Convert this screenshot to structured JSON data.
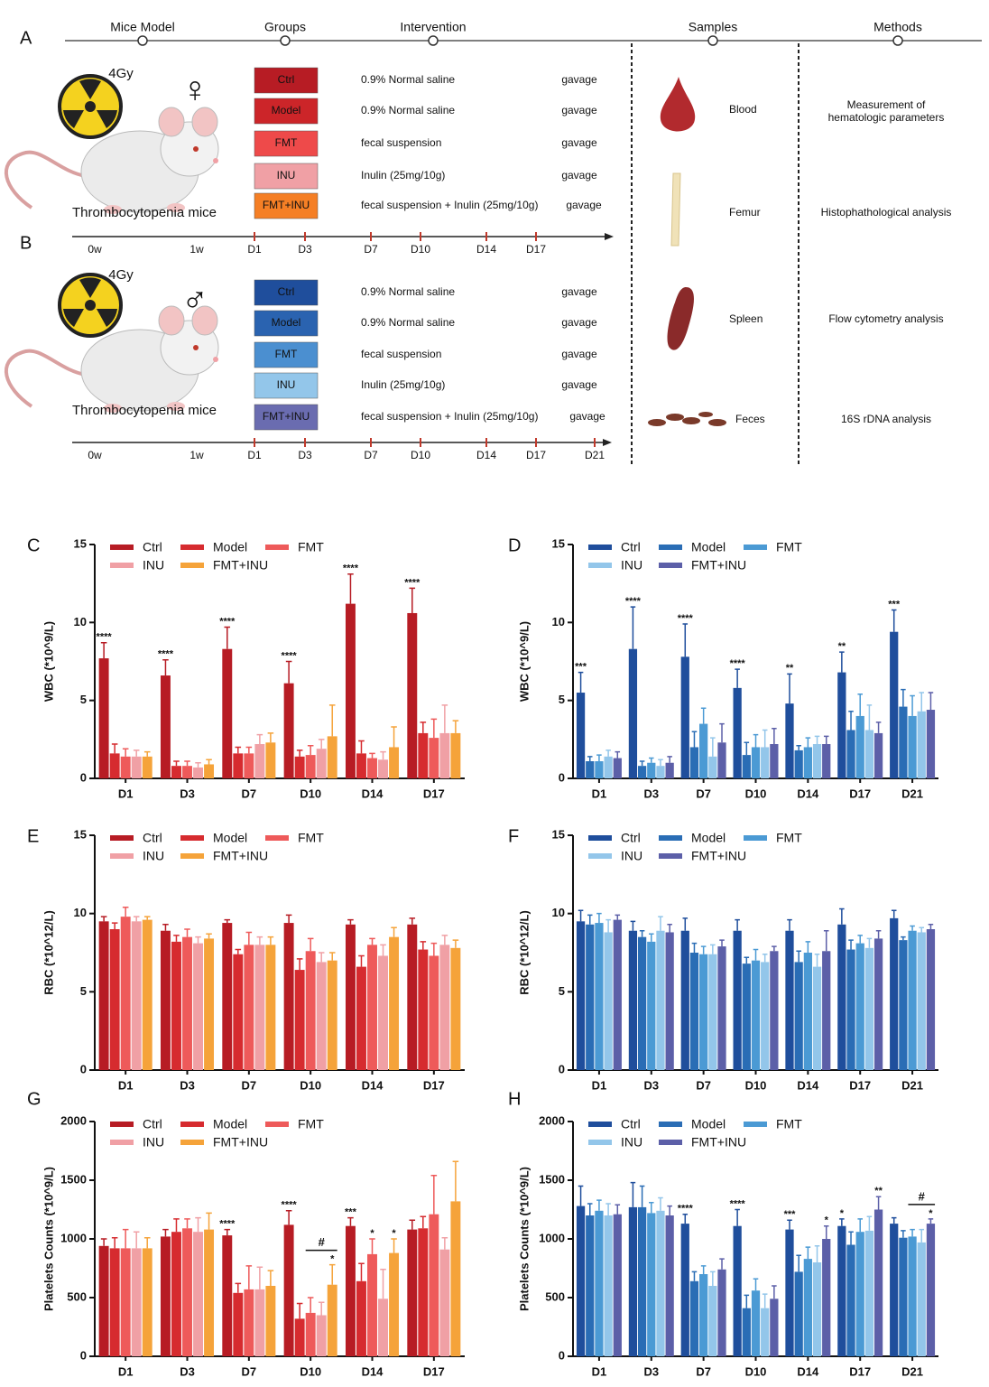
{
  "schematic": {
    "panel_a": "A",
    "panel_b": "B",
    "stages": [
      "Mice Model",
      "Groups",
      "Intervention",
      "Samples",
      "Methods"
    ],
    "cohorts": [
      {
        "dose": "4Gy",
        "sex": "♀",
        "model": "Thrombocytopenia mice",
        "groups": [
          {
            "label": "Ctrl",
            "intervention": "0.9% Normal saline",
            "route": "gavage",
            "color": "#b71c24"
          },
          {
            "label": "Model",
            "intervention": "0.9% Normal saline",
            "route": "gavage",
            "color": "#cc2529"
          },
          {
            "label": "FMT",
            "intervention": "fecal suspension",
            "route": "gavage",
            "color": "#ee4a4a"
          },
          {
            "label": "INU",
            "intervention": "Inulin (25mg/10g)",
            "route": "gavage",
            "color": "#f0a0a5"
          },
          {
            "label": "FMT+INU",
            "intervention": "fecal suspension + Inulin (25mg/10g)",
            "route": "gavage",
            "color": "#f57f25"
          }
        ],
        "timeline": [
          "0w",
          "1w",
          "D1",
          "D3",
          "D7",
          "D10",
          "D14",
          "D17"
        ]
      },
      {
        "dose": "4Gy",
        "sex": "♂",
        "model": "Thrombocytopenia mice",
        "groups": [
          {
            "label": "Ctrl",
            "intervention": "0.9% Normal saline",
            "route": "gavage",
            "color": "#1f4e9c"
          },
          {
            "label": "Model",
            "intervention": "0.9% Normal saline",
            "route": "gavage",
            "color": "#2a63b0"
          },
          {
            "label": "FMT",
            "intervention": "fecal suspension",
            "route": "gavage",
            "color": "#4b8fd0"
          },
          {
            "label": "INU",
            "intervention": "Inulin (25mg/10g)",
            "route": "gavage",
            "color": "#93c6ea"
          },
          {
            "label": "FMT+INU",
            "intervention": "fecal suspension + Inulin (25mg/10g)",
            "route": "gavage",
            "color": "#6a6cb0"
          }
        ],
        "timeline": [
          "0w",
          "1w",
          "D1",
          "D3",
          "D7",
          "D10",
          "D14",
          "D17",
          "D21"
        ]
      }
    ],
    "samples": [
      {
        "name": "Blood",
        "method": "Measurement of hematologic parameters"
      },
      {
        "name": "Femur",
        "method": "Histophathological analysis"
      },
      {
        "name": "Spleen",
        "method": "Flow cytometry analysis"
      },
      {
        "name": "Feces",
        "method": "16S rDNA analysis"
      }
    ]
  },
  "chart_data": [
    {
      "type": "bar",
      "panel": "C",
      "y_label": "WBC (*10^9/L)",
      "categories": [
        "D1",
        "D3",
        "D7",
        "D10",
        "D14",
        "D17"
      ],
      "ylim": [
        0,
        15
      ],
      "yticks": [
        0,
        5,
        10,
        15
      ],
      "series": [
        {
          "name": "Ctrl",
          "color": "#b71c24",
          "values": [
            7.7,
            6.6,
            8.3,
            6.1,
            11.2,
            10.6
          ],
          "errors": [
            1.0,
            1.0,
            1.4,
            1.4,
            1.9,
            1.6
          ],
          "annotations": [
            "****",
            "****",
            "****",
            "****",
            "****",
            "****"
          ]
        },
        {
          "name": "Model",
          "color": "#d62b2f",
          "values": [
            1.6,
            0.8,
            1.6,
            1.4,
            1.6,
            2.9
          ],
          "errors": [
            0.6,
            0.3,
            0.4,
            0.4,
            0.8,
            0.7
          ]
        },
        {
          "name": "FMT",
          "color": "#ee5a5a",
          "values": [
            1.4,
            0.8,
            1.6,
            1.5,
            1.3,
            2.6
          ],
          "errors": [
            0.5,
            0.3,
            0.4,
            0.6,
            0.3,
            1.2
          ]
        },
        {
          "name": "INU",
          "color": "#f0a0a5",
          "values": [
            1.4,
            0.7,
            2.2,
            1.9,
            1.2,
            2.9
          ],
          "errors": [
            0.4,
            0.3,
            0.6,
            0.6,
            0.5,
            1.8
          ]
        },
        {
          "name": "FMT+INU",
          "color": "#f5a33a",
          "values": [
            1.4,
            0.9,
            2.3,
            2.7,
            2.0,
            2.9
          ],
          "errors": [
            0.3,
            0.3,
            0.6,
            2.0,
            1.3,
            0.8
          ]
        }
      ]
    },
    {
      "type": "bar",
      "panel": "D",
      "y_label": "WBC (*10^9/L)",
      "categories": [
        "D1",
        "D3",
        "D7",
        "D10",
        "D14",
        "D17",
        "D21"
      ],
      "ylim": [
        0,
        15
      ],
      "yticks": [
        0,
        5,
        10,
        15
      ],
      "series": [
        {
          "name": "Ctrl",
          "color": "#1f4e9c",
          "values": [
            5.5,
            8.3,
            7.8,
            5.8,
            4.8,
            6.8,
            9.4
          ],
          "errors": [
            1.3,
            2.7,
            2.1,
            1.2,
            1.9,
            1.3,
            1.4
          ],
          "annotations": [
            "***",
            "****",
            "****",
            "****",
            "**",
            "**",
            "***"
          ]
        },
        {
          "name": "Model",
          "color": "#2a6db5",
          "values": [
            1.1,
            0.8,
            2.0,
            1.5,
            1.8,
            3.1,
            4.6
          ],
          "errors": [
            0.3,
            0.3,
            1.0,
            0.8,
            0.3,
            1.2,
            1.1
          ]
        },
        {
          "name": "FMT",
          "color": "#4b9ad4",
          "values": [
            1.1,
            1.0,
            3.5,
            2.0,
            2.0,
            4.0,
            4.0
          ],
          "errors": [
            0.4,
            0.3,
            1.0,
            0.8,
            0.6,
            1.4,
            1.3
          ]
        },
        {
          "name": "INU",
          "color": "#93c6ea",
          "values": [
            1.4,
            0.8,
            1.4,
            2.0,
            2.2,
            3.1,
            4.3
          ],
          "errors": [
            0.4,
            0.4,
            1.2,
            1.1,
            0.5,
            1.6,
            1.2
          ]
        },
        {
          "name": "FMT+INU",
          "color": "#5c5fa8",
          "values": [
            1.3,
            1.0,
            2.3,
            2.2,
            2.2,
            2.9,
            4.4
          ],
          "errors": [
            0.4,
            0.4,
            1.2,
            1.0,
            0.5,
            0.7,
            1.1
          ]
        }
      ]
    },
    {
      "type": "bar",
      "panel": "E",
      "y_label": "RBC (*10^12/L)",
      "categories": [
        "D1",
        "D3",
        "D7",
        "D10",
        "D14",
        "D17"
      ],
      "ylim": [
        0,
        15
      ],
      "yticks": [
        0,
        5,
        10,
        15
      ],
      "series": [
        {
          "name": "Ctrl",
          "color": "#b71c24",
          "values": [
            9.5,
            8.9,
            9.4,
            9.4,
            9.3,
            9.3
          ],
          "errors": [
            0.3,
            0.4,
            0.2,
            0.5,
            0.3,
            0.4
          ]
        },
        {
          "name": "Model",
          "color": "#d62b2f",
          "values": [
            9.0,
            8.2,
            7.4,
            6.4,
            6.6,
            7.7
          ],
          "errors": [
            0.4,
            0.4,
            0.3,
            0.7,
            0.7,
            0.5
          ]
        },
        {
          "name": "FMT",
          "color": "#ee5a5a",
          "values": [
            9.8,
            8.5,
            8.0,
            7.6,
            8.0,
            7.3
          ],
          "errors": [
            0.6,
            0.5,
            0.8,
            0.8,
            0.4,
            0.8
          ]
        },
        {
          "name": "INU",
          "color": "#f0a0a5",
          "values": [
            9.5,
            8.1,
            8.0,
            6.9,
            7.3,
            8.0
          ],
          "errors": [
            0.3,
            0.4,
            0.5,
            0.6,
            0.7,
            0.6
          ]
        },
        {
          "name": "FMT+INU",
          "color": "#f5a33a",
          "values": [
            9.6,
            8.4,
            8.0,
            7.0,
            8.5,
            7.8
          ],
          "errors": [
            0.2,
            0.3,
            0.5,
            0.5,
            0.6,
            0.5
          ]
        }
      ]
    },
    {
      "type": "bar",
      "panel": "F",
      "y_label": "RBC (*10^12/L)",
      "categories": [
        "D1",
        "D3",
        "D7",
        "D10",
        "D14",
        "D17",
        "D21"
      ],
      "ylim": [
        0,
        15
      ],
      "yticks": [
        0,
        5,
        10,
        15
      ],
      "series": [
        {
          "name": "Ctrl",
          "color": "#1f4e9c",
          "values": [
            9.5,
            8.9,
            8.9,
            8.9,
            8.9,
            9.3,
            9.7
          ],
          "errors": [
            0.7,
            0.6,
            0.8,
            0.7,
            0.7,
            1.0,
            0.5
          ]
        },
        {
          "name": "Model",
          "color": "#2a6db5",
          "values": [
            9.3,
            8.5,
            7.5,
            6.8,
            6.9,
            7.7,
            8.3
          ],
          "errors": [
            0.6,
            0.4,
            0.6,
            0.4,
            0.7,
            0.6,
            0.2
          ]
        },
        {
          "name": "FMT",
          "color": "#4b9ad4",
          "values": [
            9.4,
            8.2,
            7.4,
            7.0,
            7.5,
            8.1,
            8.9
          ],
          "errors": [
            0.6,
            0.5,
            0.5,
            0.7,
            0.7,
            0.5,
            0.3
          ]
        },
        {
          "name": "INU",
          "color": "#93c6ea",
          "values": [
            8.8,
            8.9,
            7.4,
            6.9,
            6.6,
            7.8,
            8.8
          ],
          "errors": [
            0.8,
            0.9,
            0.6,
            0.5,
            0.8,
            0.6,
            0.3
          ]
        },
        {
          "name": "FMT+INU",
          "color": "#5c5fa8",
          "values": [
            9.6,
            8.8,
            7.9,
            7.6,
            7.6,
            8.4,
            9.0
          ],
          "errors": [
            0.3,
            0.5,
            0.4,
            0.3,
            1.3,
            0.5,
            0.3
          ]
        }
      ]
    },
    {
      "type": "bar",
      "panel": "G",
      "y_label": "Platelets Counts (*10^9/L)",
      "categories": [
        "D1",
        "D3",
        "D7",
        "D10",
        "D14",
        "D17"
      ],
      "ylim": [
        0,
        2000
      ],
      "yticks": [
        0,
        500,
        1000,
        1500,
        2000
      ],
      "series": [
        {
          "name": "Ctrl",
          "color": "#b71c24",
          "values": [
            940,
            1020,
            1030,
            1120,
            1110,
            1080
          ],
          "errors": [
            60,
            60,
            50,
            120,
            70,
            80
          ],
          "annotations": [
            null,
            null,
            "****",
            "****",
            "***",
            null
          ]
        },
        {
          "name": "Model",
          "color": "#d62b2f",
          "values": [
            920,
            1060,
            540,
            320,
            640,
            1090
          ],
          "errors": [
            90,
            110,
            80,
            130,
            150,
            100
          ]
        },
        {
          "name": "FMT",
          "color": "#ee5a5a",
          "values": [
            920,
            1090,
            570,
            370,
            870,
            1210
          ],
          "errors": [
            160,
            80,
            200,
            130,
            130,
            330
          ],
          "annotations": [
            null,
            null,
            null,
            null,
            "*",
            null
          ]
        },
        {
          "name": "INU",
          "color": "#f0a0a5",
          "values": [
            920,
            1060,
            570,
            350,
            490,
            910
          ],
          "errors": [
            140,
            120,
            190,
            110,
            250,
            100
          ]
        },
        {
          "name": "FMT+INU",
          "color": "#f5a33a",
          "values": [
            920,
            1080,
            600,
            610,
            880,
            1320
          ],
          "errors": [
            90,
            140,
            130,
            170,
            120,
            340
          ],
          "annotations": [
            null,
            null,
            null,
            "*",
            "*",
            null
          ]
        }
      ],
      "brackets": [
        {
          "text": "#",
          "category": "D10",
          "from": "FMT",
          "to": "FMT+INU"
        }
      ]
    },
    {
      "type": "bar",
      "panel": "H",
      "y_label": "Platelets Counts (*10^9/L)",
      "categories": [
        "D1",
        "D3",
        "D7",
        "D10",
        "D14",
        "D17",
        "D21"
      ],
      "ylim": [
        0,
        2000
      ],
      "yticks": [
        0,
        500,
        1000,
        1500,
        2000
      ],
      "series": [
        {
          "name": "Ctrl",
          "color": "#1f4e9c",
          "values": [
            1280,
            1270,
            1130,
            1110,
            1080,
            1110,
            1130
          ],
          "errors": [
            170,
            210,
            80,
            140,
            80,
            60,
            50
          ],
          "annotations": [
            null,
            null,
            "****",
            "****",
            "***",
            "*",
            null
          ]
        },
        {
          "name": "Model",
          "color": "#2a6db5",
          "values": [
            1200,
            1270,
            640,
            410,
            720,
            950,
            1010
          ],
          "errors": [
            100,
            180,
            80,
            110,
            140,
            110,
            60
          ]
        },
        {
          "name": "FMT",
          "color": "#4b9ad4",
          "values": [
            1240,
            1220,
            700,
            560,
            830,
            1060,
            1020
          ],
          "errors": [
            90,
            90,
            70,
            100,
            100,
            110,
            60
          ]
        },
        {
          "name": "INU",
          "color": "#93c6ea",
          "values": [
            1200,
            1240,
            600,
            410,
            800,
            1070,
            970
          ],
          "errors": [
            100,
            110,
            120,
            120,
            140,
            120,
            110
          ]
        },
        {
          "name": "FMT+INU",
          "color": "#5c5fa8",
          "values": [
            1210,
            1200,
            740,
            490,
            1000,
            1250,
            1130
          ],
          "errors": [
            80,
            80,
            90,
            110,
            110,
            110,
            40
          ],
          "annotations": [
            null,
            null,
            null,
            null,
            "*",
            "**",
            "*"
          ]
        }
      ],
      "brackets": [
        {
          "text": "#",
          "category": "D21",
          "from": "FMT",
          "to": "FMT+INU"
        }
      ]
    }
  ]
}
